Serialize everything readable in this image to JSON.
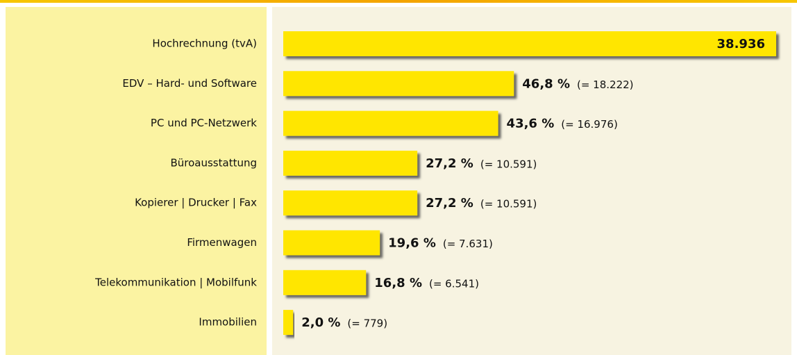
{
  "chart_data": {
    "type": "bar",
    "orientation": "horizontal",
    "total": {
      "category": "Hochrechnung (tvA)",
      "value": 38936,
      "value_label": "38.936"
    },
    "categories": [
      "EDV – Hard- und Software",
      "PC und PC-Netzwerk",
      "Büroausstattung",
      "Kopierer | Drucker | Fax",
      "Firmenwagen",
      "Telekommunikation | Mobilfunk",
      "Immobilien"
    ],
    "values": [
      18222,
      16976,
      10591,
      10591,
      7631,
      6541,
      779
    ],
    "value_labels": [
      "(= 18.222)",
      "(= 16.976)",
      "(= 10.591)",
      "(= 10.591)",
      "(= 7.631)",
      "(= 6.541)",
      "(= 779)"
    ],
    "shares": [
      46.8,
      43.6,
      27.2,
      27.2,
      19.6,
      16.8,
      2.0
    ],
    "share_labels": [
      "46,8 %",
      "43,6 %",
      "27,2 %",
      "27,2 %",
      "19,6 %",
      "16,8 %",
      "2,0 %"
    ],
    "color": "#ffe600",
    "xlim": [
      0,
      38936
    ]
  }
}
